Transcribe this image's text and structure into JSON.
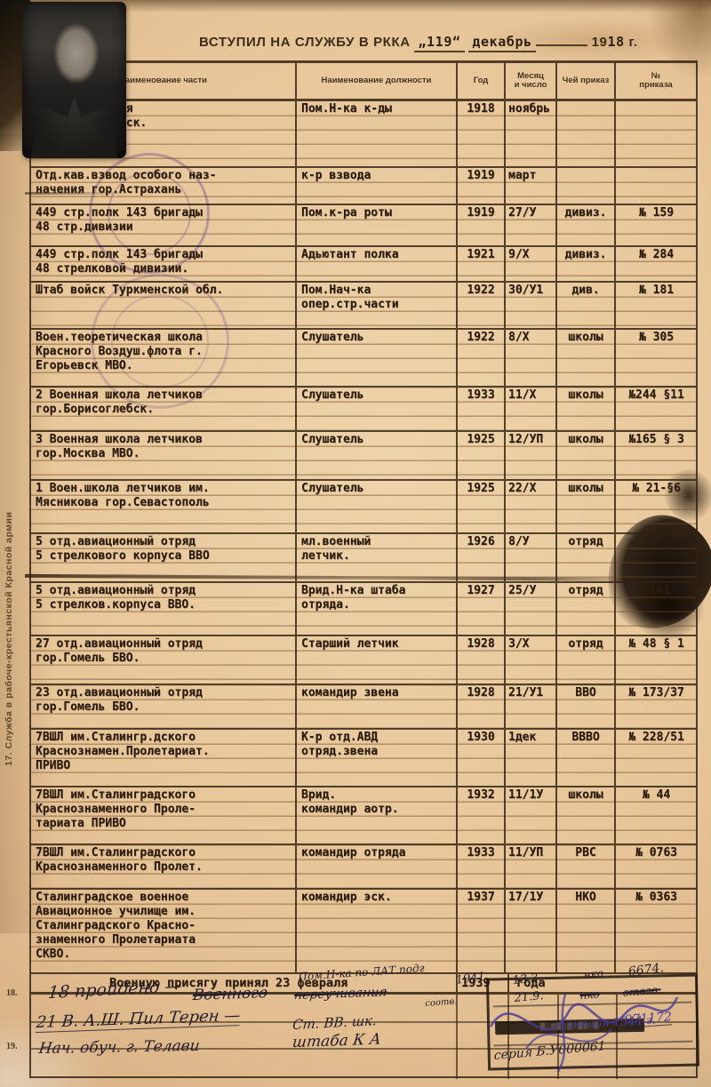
{
  "document": {
    "title": {
      "prefix": "ВСТУПИЛ НА СЛУЖБУ В РККА",
      "day": "„119“",
      "month": "декабрь",
      "year_printed": "19",
      "year_typed": "18",
      "suffix": "г."
    },
    "margin_caption": "17. Служба в рабоче-крестьянской Красной армии",
    "margin_numbers": [
      "18.",
      "19."
    ]
  },
  "table": {
    "headers": [
      "Наименование части",
      "Наименование должности",
      "Год",
      "Месяц\nи число",
      "Чей приказ",
      "№\nприказа"
    ],
    "rows": [
      {
        "unit": "Отд.пулеметная\nк-да закаспийск.\nфронт",
        "position": "Пом.Н-ка к-ды",
        "year": "1918",
        "month": "ноябрь",
        "order": "",
        "number": ""
      },
      {
        "unit": "Отд.кав.взвод особого наз-\nначения гор.Астрахань",
        "position": "к-р взвода",
        "year": "1919",
        "month": "март",
        "order": "",
        "number": ""
      },
      {
        "unit": "449 стр.полк 143 бригады\n48 стр.дивизии",
        "position": "Пом.к-ра роты",
        "year": "1919",
        "month": "27/У",
        "order": "дивиз.",
        "number": "№ 159"
      },
      {
        "unit": "449 стр.полк 143 бригады\n48 стрелковой дивизии.",
        "position": "Адьютант полка",
        "year": "1921",
        "month": "9/Х",
        "order": "дивиз.",
        "number": "№ 284"
      },
      {
        "unit": "Штаб войск Туркменской обл.",
        "position": "Пом.Нач-ка\nопер.стр.части",
        "year": "1922",
        "month": "30/У1",
        "order": "див.",
        "number": "№ 181"
      },
      {
        "unit": "Воен.теоретическая школа\nКрасного Воздуш.флота г.\nЕгорьевск МВО.",
        "position": "Слушатель",
        "year": "1922",
        "month": "8/Х",
        "order": "школы",
        "number": "№ 305"
      },
      {
        "unit": "2 Военная школа летчиков\nгор.Борисоглебск.",
        "position": "Слушатель",
        "year": "1933",
        "month": "11/Х",
        "order": "школы",
        "number": "№244 §11"
      },
      {
        "unit": "3 Военная школа летчиков\nгор.Москва МВО.",
        "position": "Слушатель",
        "year": "1925",
        "month": "12/УП",
        "order": "школы",
        "number": "№165 § 3"
      },
      {
        "unit": "1 Воен.школа летчиков им.\nМясникова гор.Севастополь",
        "position": "Слушатель",
        "year": "1925",
        "month": "22/Х",
        "order": "школы",
        "number": "№ 21-§6"
      },
      {
        "unit": "5 отд.авиационный отряд\n5 стрелкового корпуса ВВО",
        "position": "мл.военный\nлетчик.",
        "year": "1926",
        "month": "8/У",
        "order": "отряд",
        "number": ""
      },
      {
        "unit": "5 отд.авиационный отряд\n5 стрелков.корпуса ВВО.",
        "position": "Врид.Н-ка штаба\nотряда.",
        "year": "1927",
        "month": "25/У",
        "order": "отряд",
        "number": "№161"
      },
      {
        "unit": "27 отд.авиационный отряд\nгор.Гомель БВО.",
        "position": "Старший летчик",
        "year": "1928",
        "month": "3/Х",
        "order": "отряд",
        "number": "№ 48 § 1"
      },
      {
        "unit": "23 отд.авиационный отряд\nгор.Гомель БВО.",
        "position": "командир звена",
        "year": "1928",
        "month": "21/У1",
        "order": "ВВО",
        "number": "№ 173/37"
      },
      {
        "unit": "7ВШЛ им.Сталингр.дского\nКраснознамен.Пролетариат.\nПРИВО",
        "position": "К-р отд.АВД\nотряд.звена",
        "year": "1930",
        "month": "1дек",
        "order": "ВВВО",
        "number": "№ 228/51"
      },
      {
        "unit": "7ВШЛ им.Сталинградского\nКраснознаменного Проле-\nтариата ПРИВО",
        "position": "Врид.\nкомандир аотр.",
        "year": "1932",
        "month": "11/1У",
        "order": "школы",
        "number": "№ 44"
      },
      {
        "unit": "7ВШЛ им.Сталинградского\nКраснознаменного Пролет.",
        "position": "командир отряда",
        "year": "1933",
        "month": "11/УП",
        "order": "РВС",
        "number": "№ 0763"
      },
      {
        "unit": "Сталинградское военное\nАвиационное училище им.\nСталинградского Красно-\nзнаменного Пролетариата\nСКВО.",
        "position": "командир эск.",
        "year": "1937",
        "month": "17/1У",
        "order": "НКО",
        "number": "№ 0363"
      }
    ],
    "oath": {
      "text": "Военную присягу принял 23 февраля",
      "year": "1939",
      "suffix": "года"
    }
  },
  "handwriting": [
    "Пом.Н-ка по ЛАТ.подг",
    "1941.",
    "13.3.",
    "нко",
    "6674.",
    "18 пройдено —",
    "Военного",
    "переучивания",
    "соотв.",
    "21.9.",
    "нко",
    "отозв.",
    "21 В. А.Ш. Пил Терен —",
    "Ст. ВВ. шк.",
    "Нач. обуч. г. Телави",
    "штаба К А",
    "января 1944 г.",
    "серия Б.У000061",
    "071172"
  ]
}
